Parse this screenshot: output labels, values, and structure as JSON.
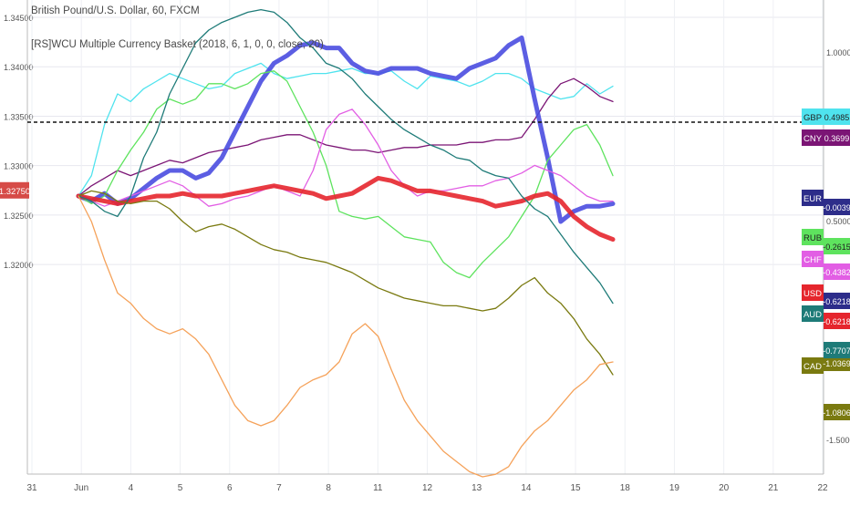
{
  "header": {
    "title": "British Pound/U.S. Dollar, 60, FXCM",
    "indicator": "[RS]WCU Multiple Currency Basket (2018, 6, 1, 0, 0, close, 20)"
  },
  "chart_data": {
    "type": "line",
    "dashed_level": 1.3344,
    "price_tag": {
      "text": "1.32750",
      "value": 1.3275,
      "color": "#d64b47"
    },
    "left_axis": {
      "range": [
        1.3,
        1.345
      ],
      "ticks": [
        "1.34500",
        "1.34000",
        "1.33500",
        "1.33000",
        "1.32500",
        "1.32000"
      ]
    },
    "right_axis": {
      "ticks": [
        "1.0000",
        "0.5000",
        "-1.5000"
      ]
    },
    "x_ticks": [
      "31",
      "Jun",
      "4",
      "5",
      "6",
      "7",
      "8",
      "11",
      "12",
      "13",
      "14",
      "15",
      "18",
      "19",
      "20",
      "21",
      "22"
    ],
    "series": [
      {
        "name": "GBP",
        "color": "#4fe3ee",
        "label": "0.4985",
        "y": [
          0.7,
          0.62,
          0.42,
          0.3,
          0.33,
          0.28,
          0.25,
          0.22,
          0.24,
          0.26,
          0.28,
          0.27,
          0.22,
          0.2,
          0.18,
          0.22,
          0.24,
          0.23,
          0.22,
          0.22,
          0.21,
          0.2,
          0.22,
          0.22,
          0.21,
          0.25,
          0.28,
          0.23,
          0.24,
          0.25,
          0.27,
          0.25,
          0.22,
          0.22,
          0.24,
          0.28,
          0.3,
          0.32,
          0.31,
          0.26,
          0.3,
          0.27
        ]
      },
      {
        "name": "CNY",
        "color": "#7b1575",
        "label": "0.3699",
        "y": [
          0.7,
          0.66,
          0.63,
          0.6,
          0.62,
          0.6,
          0.58,
          0.56,
          0.57,
          0.55,
          0.53,
          0.52,
          0.51,
          0.5,
          0.48,
          0.47,
          0.46,
          0.46,
          0.48,
          0.5,
          0.51,
          0.52,
          0.52,
          0.53,
          0.52,
          0.51,
          0.51,
          0.5,
          0.5,
          0.5,
          0.49,
          0.49,
          0.48,
          0.48,
          0.47,
          0.4,
          0.32,
          0.26,
          0.24,
          0.27,
          0.31,
          0.33
        ]
      },
      {
        "name": "EUR",
        "color": "#4a4ce0",
        "label": "-0.0039",
        "y": [
          0.7,
          0.72,
          0.69,
          0.73,
          0.71,
          0.67,
          0.63,
          0.6,
          0.6,
          0.63,
          0.61,
          0.55,
          0.45,
          0.35,
          0.25,
          0.18,
          0.15,
          0.11,
          0.1,
          0.12,
          0.12,
          0.18,
          0.21,
          0.22,
          0.2,
          0.2,
          0.2,
          0.22,
          0.23,
          0.24,
          0.2,
          0.18,
          0.16,
          0.11,
          0.08,
          0.32,
          0.55,
          0.8,
          0.76,
          0.74,
          0.74,
          0.73
        ]
      },
      {
        "name": "RUB",
        "color": "#5ee35e",
        "label": "-0.2615",
        "y": [
          0.7,
          0.73,
          0.7,
          0.6,
          0.52,
          0.45,
          0.36,
          0.32,
          0.34,
          0.32,
          0.26,
          0.26,
          0.28,
          0.26,
          0.22,
          0.21,
          0.25,
          0.35,
          0.45,
          0.58,
          0.76,
          0.78,
          0.79,
          0.78,
          0.82,
          0.86,
          0.87,
          0.88,
          0.96,
          1.0,
          1.02,
          0.96,
          0.91,
          0.86,
          0.78,
          0.7,
          0.56,
          0.5,
          0.44,
          0.42,
          0.5,
          0.62
        ]
      },
      {
        "name": "CHF",
        "color": "#e25ee4",
        "label": "-0.4382",
        "y": [
          0.7,
          0.72,
          0.74,
          0.72,
          0.7,
          0.68,
          0.66,
          0.64,
          0.66,
          0.7,
          0.74,
          0.73,
          0.71,
          0.7,
          0.68,
          0.66,
          0.68,
          0.7,
          0.6,
          0.44,
          0.38,
          0.36,
          0.42,
          0.5,
          0.6,
          0.66,
          0.7,
          0.68,
          0.68,
          0.67,
          0.66,
          0.66,
          0.64,
          0.63,
          0.61,
          0.58,
          0.6,
          0.62,
          0.66,
          0.7,
          0.72,
          0.72
        ]
      },
      {
        "name": "USD",
        "color": "#e5262d",
        "label": "-0.6218",
        "y": [
          0.7,
          0.71,
          0.72,
          0.73,
          0.72,
          0.71,
          0.7,
          0.7,
          0.69,
          0.7,
          0.7,
          0.7,
          0.69,
          0.68,
          0.67,
          0.66,
          0.67,
          0.68,
          0.69,
          0.71,
          0.7,
          0.69,
          0.66,
          0.63,
          0.64,
          0.66,
          0.68,
          0.68,
          0.69,
          0.7,
          0.71,
          0.72,
          0.74,
          0.73,
          0.72,
          0.7,
          0.69,
          0.72,
          0.78,
          0.82,
          0.85,
          0.87
        ]
      },
      {
        "name": "AUD",
        "color": "#1e7b78",
        "label": "-0.6218",
        "y": [
          0.7,
          0.72,
          0.76,
          0.78,
          0.7,
          0.55,
          0.45,
          0.3,
          0.2,
          0.1,
          0.05,
          0.02,
          0.0,
          -0.02,
          -0.03,
          -0.02,
          0.02,
          0.08,
          0.12,
          0.18,
          0.2,
          0.24,
          0.3,
          0.35,
          0.4,
          0.44,
          0.47,
          0.5,
          0.52,
          0.55,
          0.56,
          0.6,
          0.62,
          0.63,
          0.7,
          0.75,
          0.78,
          0.85,
          0.92,
          0.98,
          1.04,
          1.12
        ]
      },
      {
        "name": "CAD",
        "color": "#7a7a10",
        "label": "-1.0369",
        "y": [
          0.7,
          0.68,
          0.69,
          0.72,
          0.73,
          0.72,
          0.72,
          0.75,
          0.8,
          0.84,
          0.82,
          0.81,
          0.83,
          0.86,
          0.89,
          0.91,
          0.92,
          0.94,
          0.95,
          0.96,
          0.98,
          1.0,
          1.03,
          1.06,
          1.08,
          1.1,
          1.11,
          1.12,
          1.13,
          1.13,
          1.14,
          1.15,
          1.14,
          1.1,
          1.05,
          1.02,
          1.08,
          1.12,
          1.18,
          1.26,
          1.32,
          1.4
        ]
      },
      {
        "name": "",
        "color": "#f5a25a",
        "label": "-1.0806",
        "y": [
          0.7,
          0.8,
          0.95,
          1.08,
          1.12,
          1.18,
          1.22,
          1.24,
          1.22,
          1.26,
          1.32,
          1.42,
          1.52,
          1.58,
          1.6,
          1.58,
          1.52,
          1.45,
          1.42,
          1.4,
          1.35,
          1.24,
          1.2,
          1.25,
          1.38,
          1.5,
          1.58,
          1.64,
          1.7,
          1.74,
          1.78,
          1.8,
          1.79,
          1.76,
          1.68,
          1.62,
          1.58,
          1.52,
          1.46,
          1.42,
          1.36,
          1.35
        ]
      },
      {
        "name": "",
        "color": "#1e7b78",
        "label": "-0.7707",
        "y": []
      },
      {
        "name": "",
        "color": "#2d2d8a",
        "label": "-0.6218",
        "y": []
      }
    ]
  }
}
